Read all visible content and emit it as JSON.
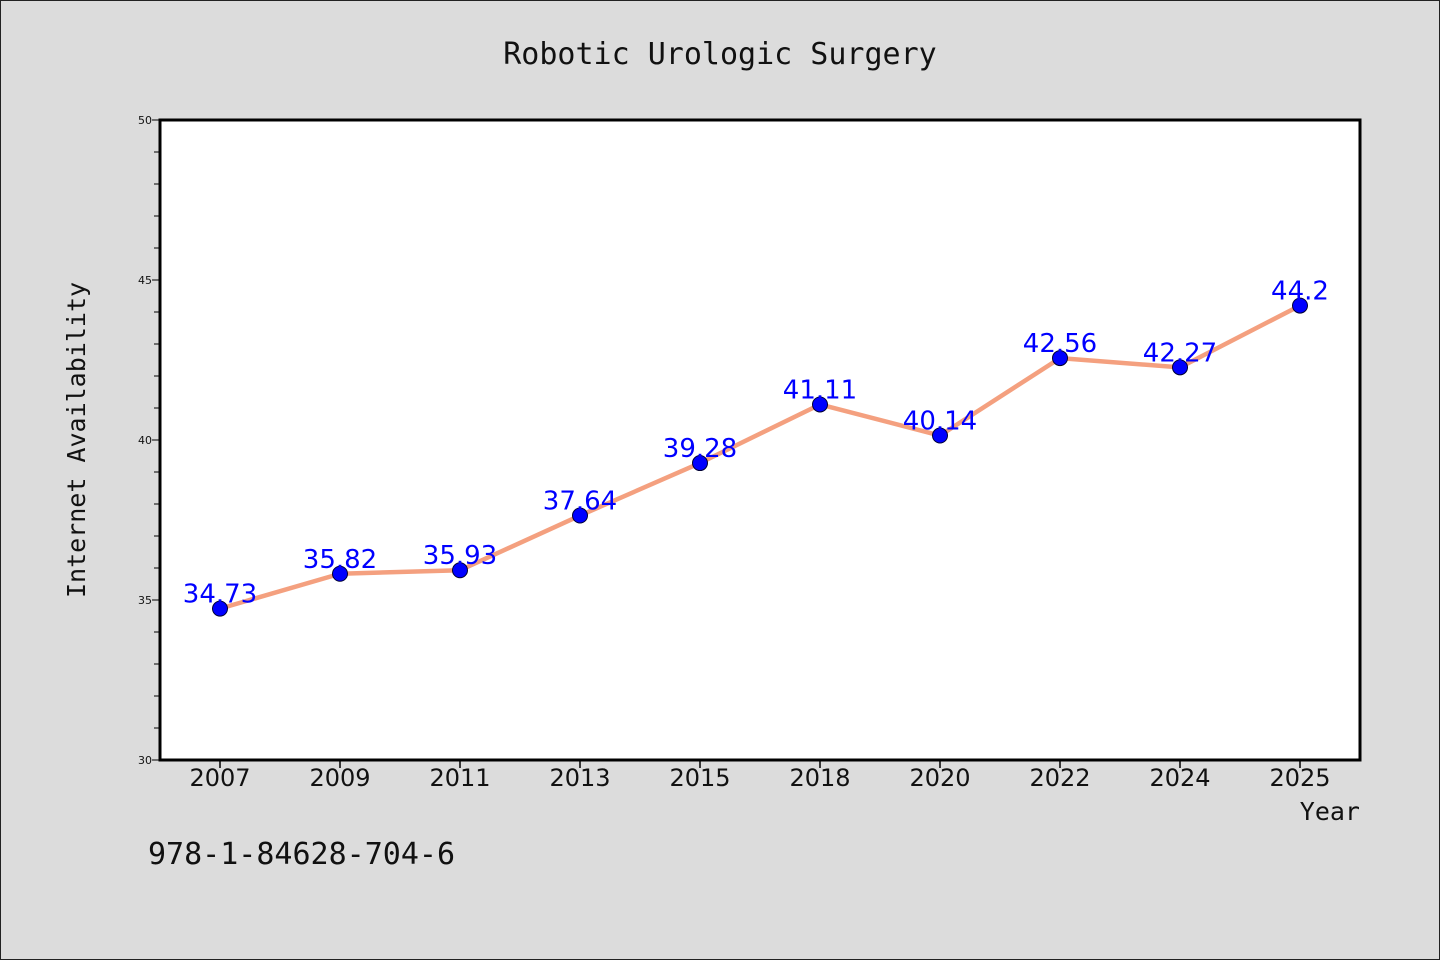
{
  "chart_data": {
    "type": "line",
    "title": "Robotic Urologic Surgery",
    "xlabel": "Year",
    "ylabel": "Internet Availability",
    "categories": [
      "2007",
      "2009",
      "2011",
      "2013",
      "2015",
      "2018",
      "2020",
      "2022",
      "2024",
      "2025"
    ],
    "series": [
      {
        "values": [
          34.73,
          35.82,
          35.93,
          37.64,
          39.28,
          41.11,
          40.14,
          42.56,
          42.27,
          44.2
        ]
      }
    ],
    "data_labels": [
      "34.73",
      "35.82",
      "35.93",
      "37.64",
      "39.28",
      "41.11",
      "40.14",
      "42.56",
      "42.27",
      "44.2"
    ],
    "ylim": [
      30,
      50
    ],
    "yticks": [
      "30",
      "35",
      "40",
      "45",
      "50"
    ],
    "grid": false,
    "colors": {
      "line": "#f4a07f",
      "marker": "#0000ff",
      "data_label": "#0000ff",
      "background": "#dcdcdc",
      "plot_background": "#ffffff"
    }
  },
  "footer_text": "978-1-84628-704-6"
}
